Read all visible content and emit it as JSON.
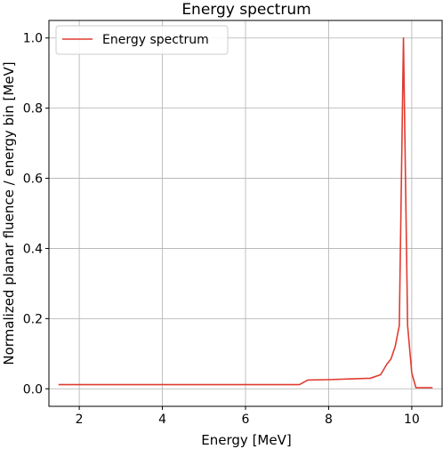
{
  "chart_data": {
    "type": "line",
    "title": "Energy spectrum",
    "xlabel": "Energy [MeV]",
    "ylabel": "Normalized planar fluence / energy bin [MeV]",
    "xlim": [
      1.27,
      10.73
    ],
    "ylim": [
      -0.05,
      1.05
    ],
    "xticks": [
      2,
      4,
      6,
      8,
      10
    ],
    "xtick_labels": [
      "2",
      "4",
      "6",
      "8",
      "10"
    ],
    "yticks": [
      0.0,
      0.2,
      0.4,
      0.6,
      0.8,
      1.0
    ],
    "ytick_labels": [
      "0.0",
      "0.2",
      "0.4",
      "0.6",
      "0.8",
      "1.0"
    ],
    "grid": true,
    "legend": {
      "position": "top-left"
    },
    "series": [
      {
        "name": "Energy spectrum",
        "color": "#e03c31",
        "x": [
          1.5,
          2.0,
          3.0,
          4.0,
          5.0,
          6.0,
          7.0,
          7.3,
          7.5,
          8.0,
          8.5,
          9.0,
          9.25,
          9.4,
          9.5,
          9.6,
          9.7,
          9.8,
          9.9,
          10.0,
          10.1,
          10.5
        ],
        "y": [
          0.012,
          0.012,
          0.012,
          0.012,
          0.012,
          0.012,
          0.012,
          0.012,
          0.025,
          0.026,
          0.028,
          0.03,
          0.04,
          0.07,
          0.085,
          0.12,
          0.18,
          1.0,
          0.18,
          0.045,
          0.003,
          0.003
        ]
      }
    ]
  }
}
